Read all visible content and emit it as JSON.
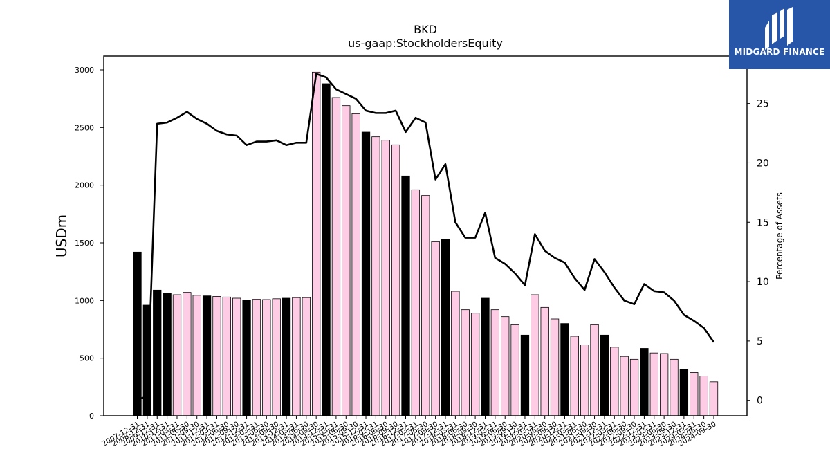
{
  "chart_data": {
    "type": "bar",
    "title": "BKD",
    "subtitle": "us-gaap:StockholdersEquity",
    "ylabel": "USDm",
    "y2label": "Percentage of Assets",
    "ylim": [
      0,
      3120
    ],
    "y2lim": [
      -1.3,
      29
    ],
    "yticks": [
      0,
      500,
      1000,
      1500,
      2000,
      2500,
      3000
    ],
    "y2ticks": [
      0,
      5,
      10,
      15,
      20,
      25
    ],
    "grid": false,
    "bar_colors": {
      "annual": "#000000",
      "quarterly": "#ffcce6",
      "edge": "#000000"
    },
    "line_color": "#000000",
    "categories": [
      "2007-12-31",
      "2008-12-31",
      "2009-12-31",
      "2010-12-31",
      "2011-03-31",
      "2011-06-30",
      "2011-09-30",
      "2011-12-31",
      "2012-03-31",
      "2012-06-30",
      "2012-09-30",
      "2012-12-31",
      "2013-03-31",
      "2013-06-30",
      "2013-09-30",
      "2013-12-31",
      "2014-03-31",
      "2014-06-30",
      "2014-09-30",
      "2014-12-31",
      "2015-03-31",
      "2015-06-30",
      "2015-09-30",
      "2015-12-31",
      "2016-03-31",
      "2016-06-30",
      "2016-09-30",
      "2016-12-31",
      "2017-03-31",
      "2017-06-30",
      "2017-09-30",
      "2017-12-31",
      "2018-03-31",
      "2018-06-30",
      "2018-09-30",
      "2018-12-31",
      "2019-03-31",
      "2019-06-30",
      "2019-09-30",
      "2019-12-31",
      "2020-03-31",
      "2020-06-30",
      "2020-09-30",
      "2020-12-31",
      "2021-03-31",
      "2021-06-30",
      "2021-09-30",
      "2021-12-31",
      "2022-03-31",
      "2022-06-30",
      "2022-09-30",
      "2022-12-31",
      "2023-03-31",
      "2023-06-30",
      "2023-09-30",
      "2023-12-31",
      "2024-03-31",
      "2024-06-30",
      "2024-09-30"
    ],
    "series": [
      {
        "values": [
          1420,
          960,
          1090,
          1060,
          1050,
          1070,
          1045,
          1040,
          1035,
          1030,
          1020,
          1000,
          1010,
          1008,
          1015,
          1020,
          1025,
          1025,
          2980,
          2880,
          2760,
          2690,
          2620,
          2460,
          2420,
          2390,
          2350,
          2080,
          1960,
          1910,
          1510,
          1530,
          1080,
          920,
          890,
          1020,
          920,
          860,
          790,
          700,
          1050,
          940,
          840,
          800,
          690,
          615,
          790,
          700,
          595,
          515,
          490,
          585,
          545,
          540,
          490,
          405,
          375,
          345,
          295
        ],
        "annual": [
          true,
          true,
          true,
          true,
          false,
          false,
          false,
          true,
          false,
          false,
          false,
          true,
          false,
          false,
          false,
          true,
          false,
          false,
          false,
          true,
          false,
          false,
          false,
          true,
          false,
          false,
          false,
          true,
          false,
          false,
          false,
          true,
          false,
          false,
          false,
          true,
          false,
          false,
          false,
          true,
          false,
          false,
          false,
          true,
          false,
          false,
          false,
          true,
          false,
          false,
          false,
          true,
          false,
          false,
          false,
          true,
          false,
          false,
          false
        ]
      },
      {
        "axis": "right",
        "values": [
          0.1,
          0.3,
          23.3,
          23.4,
          23.8,
          24.3,
          23.7,
          23.3,
          22.7,
          22.4,
          22.3,
          21.5,
          21.8,
          21.8,
          21.9,
          21.5,
          21.7,
          21.7,
          27.5,
          27.2,
          26.2,
          25.8,
          25.4,
          24.4,
          24.2,
          24.2,
          24.4,
          22.6,
          23.8,
          23.4,
          18.6,
          19.9,
          15.0,
          13.7,
          13.7,
          15.8,
          12.0,
          11.5,
          10.7,
          9.7,
          14.0,
          12.6,
          12.0,
          11.6,
          10.3,
          9.3,
          11.9,
          10.8,
          9.5,
          8.4,
          8.1,
          9.8,
          9.2,
          9.1,
          8.4,
          7.2,
          6.7,
          6.1,
          4.9
        ]
      }
    ]
  },
  "logo": {
    "text": "MIDGARD FINANCE"
  }
}
